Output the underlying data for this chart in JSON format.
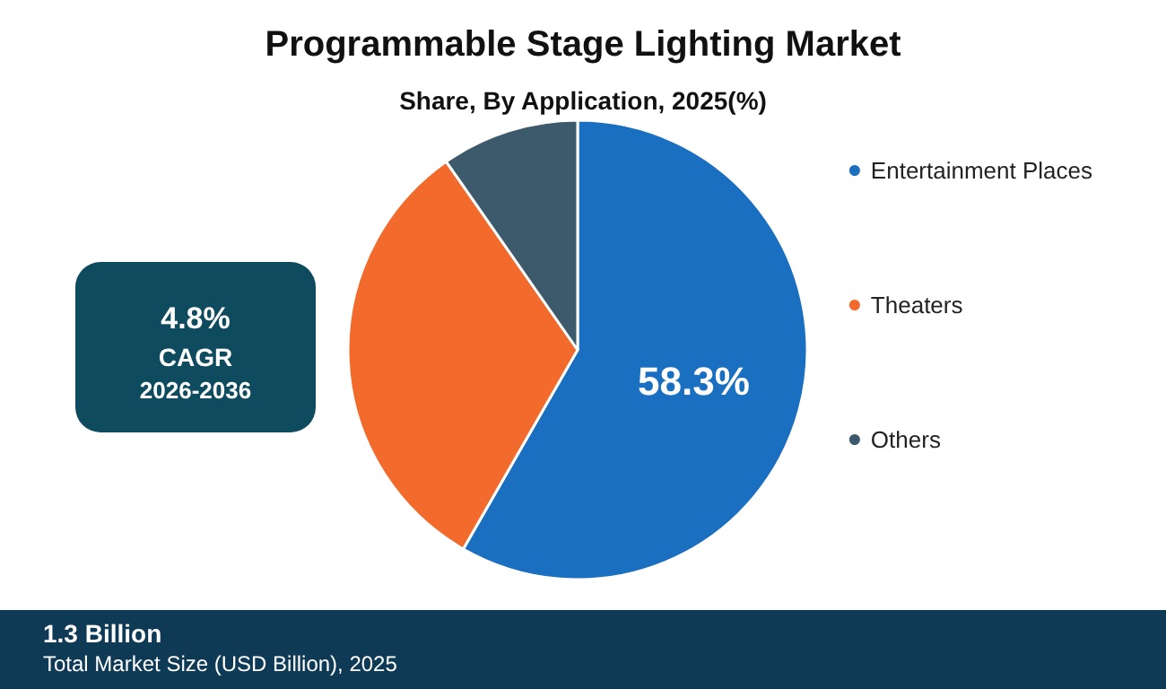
{
  "chart_data": {
    "type": "pie",
    "title": "Programmable Stage Lighting Market",
    "subtitle": "Share, By Application, 2025(%)",
    "categories": [
      "Entertainment Places",
      "Theaters",
      "Others"
    ],
    "values": [
      58.3,
      32.0,
      9.7
    ],
    "colors": [
      "#1a6fc0",
      "#f26b2c",
      "#3d5a6c"
    ],
    "value_labels": [
      "58.3%",
      null,
      null
    ],
    "legend": "right",
    "annotations": [
      "4.8%",
      "CAGR",
      "2026-2036",
      "1.3 Billion",
      "Total Market Size (USD Billion), 2025"
    ]
  }
}
